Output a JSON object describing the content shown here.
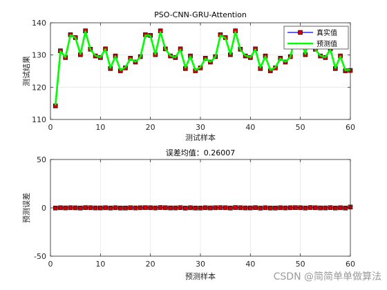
{
  "watermark": "CSDN @简简单单做算法",
  "chart_data": [
    {
      "type": "line",
      "title": "PSO-CNN-GRU-Attention",
      "xlabel": "测试样本",
      "ylabel": "测试结果",
      "xlim": [
        0,
        60
      ],
      "ylim": [
        110,
        140
      ],
      "xticks": [
        0,
        10,
        20,
        30,
        40,
        50,
        60
      ],
      "yticks": [
        110,
        120,
        130,
        140
      ],
      "grid": true,
      "legend_position": "top-right",
      "x": [
        1,
        2,
        3,
        4,
        5,
        6,
        7,
        8,
        9,
        10,
        11,
        12,
        13,
        14,
        15,
        16,
        17,
        18,
        19,
        20,
        21,
        22,
        23,
        24,
        25,
        26,
        27,
        28,
        29,
        30,
        31,
        32,
        33,
        34,
        35,
        36,
        37,
        38,
        39,
        40,
        41,
        42,
        43,
        44,
        45,
        46,
        47,
        48,
        49,
        50,
        51,
        52,
        53,
        54,
        55,
        56,
        57,
        58,
        59,
        60
      ],
      "series": [
        {
          "name": "真实值",
          "color": "#0000ff",
          "marker_color": "#cc0000",
          "values": [
            114.2,
            131.3,
            129.2,
            136.3,
            135.4,
            130.1,
            137.5,
            131.8,
            129.7,
            129.2,
            131.9,
            125.8,
            129.7,
            125.1,
            126.0,
            129.0,
            127.8,
            129.5,
            136.3,
            136.1,
            130.1,
            137.5,
            131.9,
            129.7,
            129.2,
            131.9,
            125.8,
            129.7,
            125.1,
            126.0,
            129.0,
            127.8,
            129.5,
            136.3,
            135.4,
            130.1,
            137.5,
            131.8,
            129.7,
            129.2,
            131.9,
            125.8,
            129.7,
            125.1,
            126.0,
            129.0,
            127.8,
            129.5,
            136.3,
            135.4,
            130.1,
            137.5,
            131.8,
            129.7,
            129.2,
            131.9,
            125.8,
            129.7,
            125.1,
            125.2
          ]
        },
        {
          "name": "预测值",
          "color": "#00ff00",
          "values": [
            114.4,
            131.2,
            129.3,
            136.2,
            135.4,
            130.3,
            137.3,
            131.7,
            129.8,
            129.3,
            131.8,
            126.0,
            129.6,
            125.3,
            126.2,
            128.9,
            127.9,
            129.4,
            136.1,
            136.0,
            130.2,
            137.2,
            131.8,
            129.8,
            129.3,
            131.7,
            126.1,
            129.6,
            125.3,
            126.2,
            128.9,
            127.9,
            129.4,
            136.1,
            135.3,
            130.3,
            137.2,
            131.7,
            129.8,
            129.3,
            131.7,
            126.1,
            129.6,
            125.3,
            126.2,
            128.9,
            127.9,
            129.4,
            136.1,
            135.3,
            130.3,
            137.2,
            131.7,
            129.8,
            129.3,
            131.7,
            126.0,
            129.6,
            125.3,
            125.4
          ]
        }
      ],
      "legend": [
        "真实值",
        "预测值"
      ]
    },
    {
      "type": "line",
      "title": "误差均值：0.26007",
      "xlabel": "预测样本",
      "ylabel": "预测误差",
      "xlim": [
        0,
        60
      ],
      "ylim": [
        -50,
        50
      ],
      "xticks": [
        0,
        10,
        20,
        30,
        40,
        50,
        60
      ],
      "yticks": [
        -50,
        0,
        50
      ],
      "grid": true,
      "x": [
        1,
        2,
        3,
        4,
        5,
        6,
        7,
        8,
        9,
        10,
        11,
        12,
        13,
        14,
        15,
        16,
        17,
        18,
        19,
        20,
        21,
        22,
        23,
        24,
        25,
        26,
        27,
        28,
        29,
        30,
        31,
        32,
        33,
        34,
        35,
        36,
        37,
        38,
        39,
        40,
        41,
        42,
        43,
        44,
        45,
        46,
        47,
        48,
        49,
        50,
        51,
        52,
        53,
        54,
        55,
        56,
        57,
        58,
        59,
        60
      ],
      "series": [
        {
          "color": "#0000ff",
          "marker_color": "#cc0000",
          "values": [
            -0.2,
            0.1,
            -0.1,
            0.1,
            0.0,
            -0.2,
            0.2,
            0.1,
            -0.1,
            -0.1,
            0.1,
            -0.2,
            0.1,
            -0.2,
            -0.2,
            0.1,
            -0.1,
            0.1,
            0.2,
            0.1,
            -0.1,
            0.3,
            0.1,
            -0.1,
            -0.1,
            0.2,
            -0.3,
            0.1,
            -0.2,
            -0.2,
            0.1,
            -0.1,
            0.1,
            0.2,
            0.1,
            -0.2,
            0.3,
            0.1,
            -0.1,
            -0.1,
            0.2,
            -0.3,
            0.1,
            -0.2,
            -0.2,
            0.1,
            -0.1,
            0.1,
            0.2,
            0.1,
            -0.2,
            0.3,
            0.1,
            -0.1,
            -0.1,
            0.2,
            -0.2,
            0.1,
            -0.2,
            0.8
          ]
        }
      ]
    }
  ]
}
